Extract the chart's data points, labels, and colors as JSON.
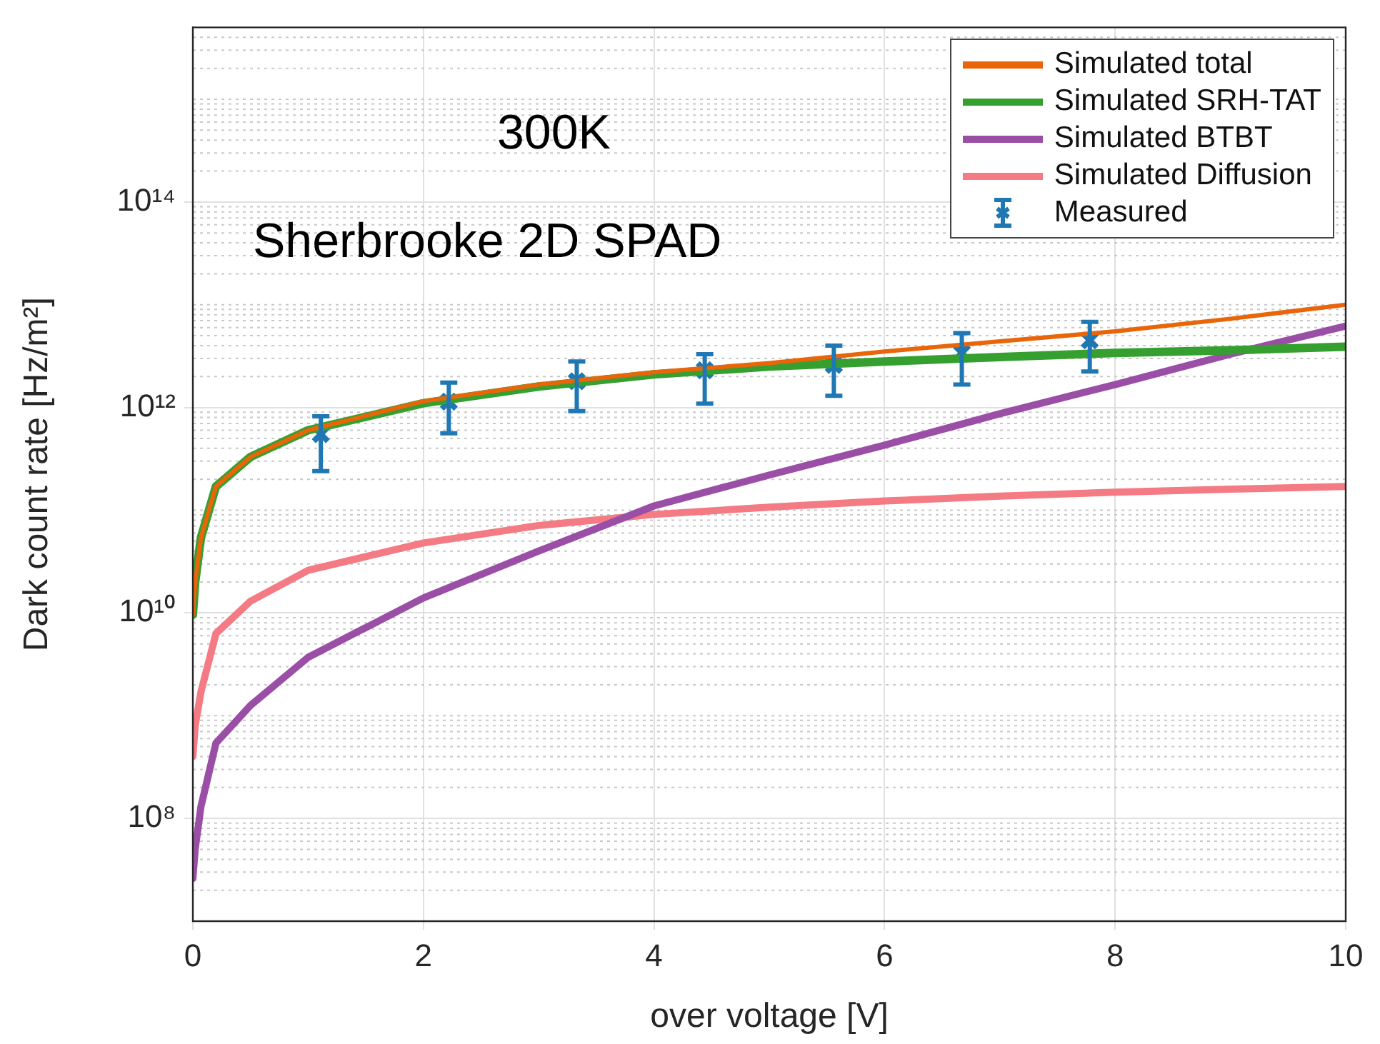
{
  "chart_data": {
    "type": "line",
    "xlabel": "over voltage [V]",
    "ylabel": "Dark count rate [Hz/m²]",
    "x": [
      0,
      0.02,
      0.07,
      0.2,
      0.5,
      1,
      2,
      3,
      4,
      5,
      6,
      7,
      8,
      9,
      10
    ],
    "series": [
      {
        "name": "Simulated total",
        "color": "#e8650a",
        "marker": "none",
        "values": [
          9600000000.0,
          20000000000.0,
          54000000000.0,
          170000000000.0,
          330000000000.0,
          600000000000.0,
          1150000000000.0,
          1670000000000.0,
          2200000000000.0,
          2700000000000.0,
          3500000000000.0,
          4400000000000.0,
          5500000000000.0,
          7300000000000.0,
          10000000000000.0
        ]
      },
      {
        "name": "Simulated SRH-TAT",
        "color": "#35a02f",
        "marker": "none",
        "values": [
          9600000000.0,
          20000000000.0,
          54000000000.0,
          170000000000.0,
          330000000000.0,
          600000000000.0,
          1100000000000.0,
          1600000000000.0,
          2100000000000.0,
          2500000000000.0,
          2800000000000.0,
          3100000000000.0,
          3400000000000.0,
          3600000000000.0,
          3900000000000.0
        ]
      },
      {
        "name": "Simulated BTBT",
        "color": "#9a4ea6",
        "marker": "none",
        "values": [
          26000000.0,
          50000000.0,
          130000000.0,
          540000000.0,
          1260000000.0,
          3700000000.0,
          14000000000.0,
          40000000000.0,
          110000000000.0,
          220000000000.0,
          430000000000.0,
          870000000000.0,
          1670000000000.0,
          3300000000000.0,
          6200000000000.0
        ]
      },
      {
        "name": "Simulated Diffusion",
        "color": "#f47a84",
        "marker": "none",
        "values": [
          400000000.0,
          800000000.0,
          1700000000.0,
          6300000000.0,
          13000000000.0,
          26000000000.0,
          48000000000.0,
          71000000000.0,
          91000000000.0,
          107000000000.0,
          123000000000.0,
          137000000000.0,
          150000000000.0,
          160000000000.0,
          170000000000.0
        ]
      },
      {
        "name": "Measured",
        "type": "scatter",
        "color": "#1f77b4",
        "marker": "cross",
        "x": [
          1.11,
          2.22,
          3.33,
          4.44,
          5.56,
          6.67,
          7.78
        ],
        "values": [
          550000000000.0,
          1140000000000.0,
          1800000000000.0,
          2300000000000.0,
          2600000000000.0,
          3400000000000.0,
          4500000000000.0
        ],
        "errors": [
          [
            240000000000.0,
            820000000000.0
          ],
          [
            560000000000.0,
            1750000000000.0
          ],
          [
            920000000000.0,
            2800000000000.0
          ],
          [
            1090000000000.0,
            3300000000000.0
          ],
          [
            1300000000000.0,
            4000000000000.0
          ],
          [
            1670000000000.0,
            5300000000000.0
          ],
          [
            2240000000000.0,
            6800000000000.0
          ]
        ]
      }
    ],
    "xlim": [
      0,
      10
    ],
    "xticks": [
      0,
      2,
      4,
      6,
      8,
      10
    ],
    "ylim": [
      10000000.0,
      5000000000000000.0
    ],
    "yticks": [
      {
        "value": 100000000.0,
        "label": "10⁸"
      },
      {
        "value": 10000000000.0,
        "label": "10¹⁰"
      },
      {
        "value": 1000000000000.0,
        "label": "10¹²"
      },
      {
        "value": 100000000000000.0,
        "label": "10¹⁴"
      }
    ],
    "log": true,
    "grid": true,
    "legend": "top right",
    "line_style": "solid",
    "annotations": [
      "300K",
      "Sherbrooke 2D SPAD"
    ]
  }
}
